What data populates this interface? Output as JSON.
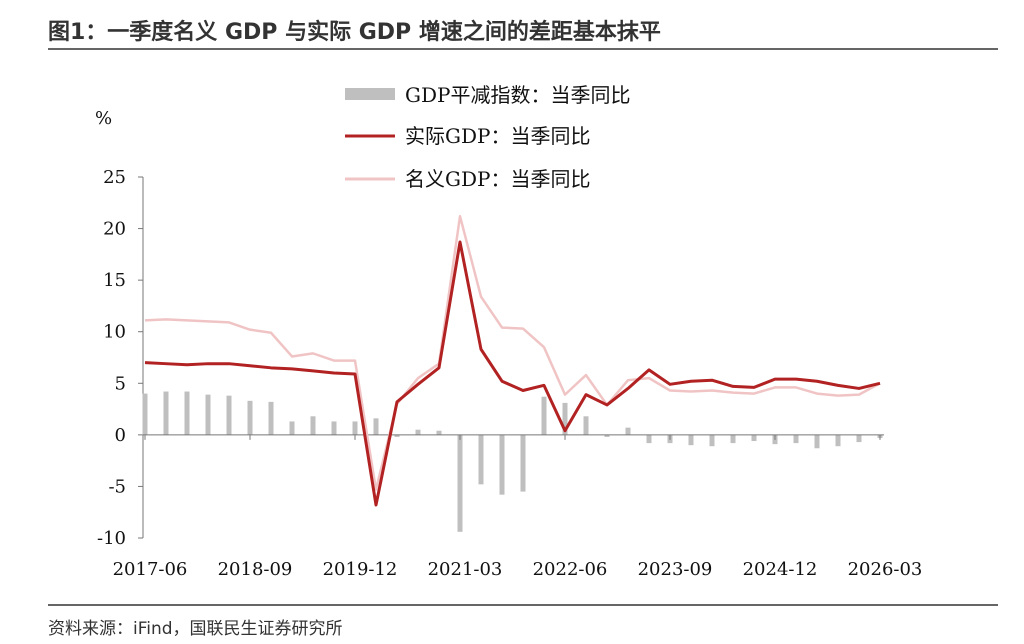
{
  "title": "图1：一季度名义 GDP 与实际 GDP 增速之间的差距基本抹平",
  "source": "资料来源：iFind，国联民生证券研究所",
  "chart_data": {
    "type": "bar+line",
    "ylabel": "%",
    "ylim": [
      -10,
      25
    ],
    "yticks": [
      -10,
      -5,
      0,
      5,
      10,
      15,
      20,
      25
    ],
    "categories": [
      "2017-06",
      "2017-09",
      "2017-12",
      "2018-03",
      "2018-06",
      "2018-09",
      "2018-12",
      "2019-03",
      "2019-06",
      "2019-09",
      "2019-12",
      "2020-03",
      "2020-06",
      "2020-09",
      "2020-12",
      "2021-03",
      "2021-06",
      "2021-09",
      "2021-12",
      "2022-03",
      "2022-06",
      "2022-09",
      "2022-12",
      "2023-03",
      "2023-06",
      "2023-09",
      "2023-12",
      "2024-03",
      "2024-06",
      "2024-09",
      "2024-12",
      "2025-03",
      "2025-06",
      "2025-09",
      "2025-12",
      "2026-03"
    ],
    "xticks": [
      "2017-06",
      "2018-09",
      "2019-12",
      "2021-03",
      "2022-06",
      "2023-09",
      "2024-12",
      "2026-03"
    ],
    "legend_position": "top-center",
    "grid": false,
    "series": [
      {
        "name": "GDP平减指数：当季同比",
        "kind": "bar",
        "color": "#bfbfbf",
        "values": [
          4.0,
          4.2,
          4.2,
          3.9,
          3.8,
          3.3,
          3.2,
          1.3,
          1.8,
          1.3,
          1.3,
          1.6,
          -0.2,
          0.5,
          0.4,
          -9.4,
          -4.8,
          -5.8,
          -5.5,
          3.7,
          3.1,
          1.8,
          -0.2,
          0.7,
          -0.8,
          -0.8,
          -1.0,
          -1.1,
          -0.8,
          -0.6,
          -0.9,
          -0.8,
          -1.3,
          -1.1,
          -0.7,
          -0.3
        ]
      },
      {
        "name": "实际GDP：当季同比",
        "kind": "line",
        "color": "#b22222",
        "values": [
          7.0,
          6.9,
          6.8,
          6.9,
          6.9,
          6.7,
          6.5,
          6.4,
          6.2,
          6.0,
          5.9,
          -6.8,
          3.2,
          4.9,
          6.5,
          18.7,
          8.3,
          5.2,
          4.3,
          4.8,
          0.4,
          3.9,
          2.9,
          4.5,
          6.3,
          4.9,
          5.2,
          5.3,
          4.7,
          4.6,
          5.4,
          5.4,
          5.2,
          4.8,
          4.5,
          5.0
        ]
      },
      {
        "name": "名义GDP：当季同比",
        "kind": "line",
        "color": "#f0c4c4",
        "values": [
          11.1,
          11.2,
          11.1,
          11.0,
          10.9,
          10.2,
          9.9,
          7.6,
          7.9,
          7.2,
          7.2,
          -5.3,
          3.0,
          5.5,
          6.9,
          21.2,
          13.4,
          10.4,
          10.3,
          8.5,
          3.9,
          5.8,
          2.9,
          5.3,
          5.5,
          4.3,
          4.2,
          4.3,
          4.1,
          4.0,
          4.6,
          4.6,
          4.0,
          3.8,
          3.9,
          5.0
        ]
      }
    ]
  }
}
